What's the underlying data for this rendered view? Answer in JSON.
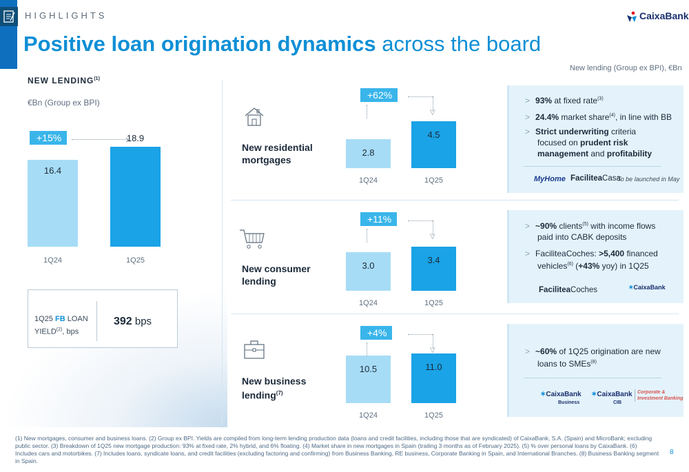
{
  "header": {
    "section": "HIGHLIGHTS",
    "title_bold": "Positive loan origination dynamics",
    "title_rest": " across the board",
    "brand": "CaixaBank",
    "lending_note": "New lending (Group ex BPI), €Bn"
  },
  "left": {
    "title": "NEW LENDING",
    "title_sup": "(1)",
    "unit_note": "€Bn (Group ex BPI)",
    "growth": "+15%",
    "chart_data": {
      "type": "bar",
      "categories": [
        "1Q24",
        "1Q25"
      ],
      "values": [
        16.4,
        18.9
      ],
      "value_labels": [
        "16.4",
        "18.9"
      ]
    },
    "yield": {
      "label_pre": "1Q25 ",
      "label_fb": "FB",
      "label_post": " LOAN",
      "label_line2": "YIELD",
      "label_sup": "(2)",
      "label_unit": ", bps",
      "value": "392",
      "unit": " bps"
    }
  },
  "rows": [
    {
      "title_line1": "New residential",
      "title_line2": "mortgages",
      "title_sup": "",
      "growth": "+62%",
      "chart_data": {
        "type": "bar",
        "categories": [
          "1Q24",
          "1Q25"
        ],
        "values": [
          2.8,
          4.5
        ],
        "value_labels": [
          "2.8",
          "4.5"
        ]
      },
      "bullets": [
        {
          "bold": "93%",
          "text": " at fixed rate",
          "sup": "(3)"
        },
        {
          "bold": "24.4%",
          "text": " market share",
          "sup": "(4)",
          "text2": ", in line with BB"
        },
        {
          "bold": "Strict underwriting",
          "text": " criteria focused on ",
          "bold2": "prudent risk management",
          "text2": " and ",
          "bold3": "profitability"
        }
      ],
      "logos": {
        "a": "MyHome",
        "b_bold": "Facilitea",
        "b_rest": "Casa",
        "c": "To be launched in May"
      }
    },
    {
      "title_line1": "New consumer",
      "title_line2": "lending",
      "title_sup": "",
      "growth": "+11%",
      "chart_data": {
        "type": "bar",
        "categories": [
          "1Q24",
          "1Q25"
        ],
        "values": [
          3.0,
          3.4
        ],
        "value_labels": [
          "3.0",
          "3.4"
        ]
      },
      "bullets": [
        {
          "bold": "~90%",
          "text": " clients",
          "sup": "(5)",
          "text2": " with income flows paid into CABK deposits"
        },
        {
          "pre": "FaciliteaCoches: ",
          "bold": ">5,400",
          "text": " financed vehicles",
          "sup": "(6)",
          "text2": " (",
          "bold2": "+43%",
          "text3": " yoy) in 1Q25"
        }
      ],
      "logos": {
        "a_bold": "Facilitea",
        "a_rest": "Coches",
        "b": "CaixaBank"
      }
    },
    {
      "title_line1": "New business",
      "title_line2": "lending",
      "title_sup": "(7)",
      "growth": "+4%",
      "chart_data": {
        "type": "bar",
        "categories": [
          "1Q24",
          "1Q25"
        ],
        "values": [
          10.5,
          11.0
        ],
        "value_labels": [
          "10.5",
          "11.0"
        ]
      },
      "bullets": [
        {
          "bold": "~60%",
          "text": " of 1Q25 origination are new loans to SMEs",
          "sup": "(8)"
        }
      ],
      "logos": {
        "a": "CaixaBank",
        "a_sub": "Business",
        "b": "CaixaBank",
        "b_sub": "CIB",
        "c1": "Corporate &",
        "c2": "Investment Banking"
      }
    }
  ],
  "footnote": "(1) New mortgages, consumer and business loans. (2) Group ex BPI. Yields are compiled from long-term lending production data (loans and credit facilities, including those that are syndicated) of CaixaBank, S.A. (Spain) and MicroBank; excluding public sector. (3) Breakdown of 1Q25 new mortgage production: 93% at fixed rate, 2% hybrid, and 6% floating. (4) Market share in new mortgages in Spain (trailing 3 months as of February 2025). (5) % over personal loans by CaixaBank. (6) Includes cars and motorbikes. (7) Includes loans, syndicate loans, and credit facilities (excluding factoring and confirming) from Business Banking, RE business, Corporate Banking in Spain, and International Branches. (8) Business Banking segment in Spain.",
  "page_number": "8",
  "colors": {
    "accent": "#0f8fd6",
    "bar_light": "#a7dcf6",
    "bar_dark": "#1aa3e6",
    "info_bg": "#e4f3fb"
  },
  "icons": {
    "section": "checklist-icon",
    "row1": "house-icon",
    "row2": "shopping-cart-icon",
    "row3": "briefcase-icon",
    "brand": "caixabank-star-icon"
  }
}
